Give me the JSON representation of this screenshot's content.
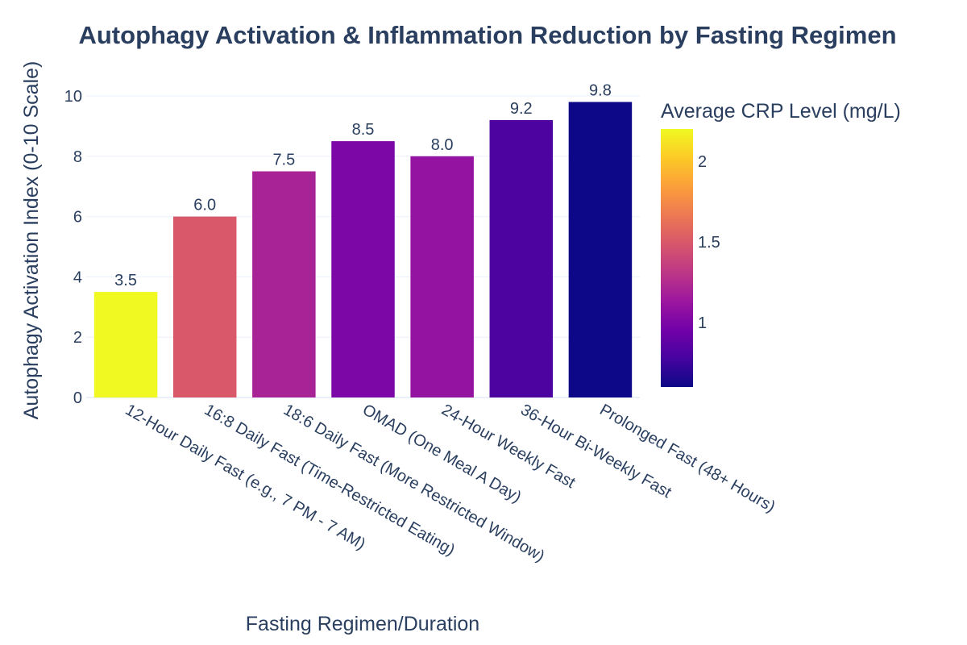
{
  "chart_data": {
    "type": "bar",
    "title": "Autophagy Activation & Inflammation Reduction by Fasting Regimen",
    "xlabel": "Fasting Regimen/Duration",
    "ylabel": "Autophagy Activation Index (0-10 Scale)",
    "ylim": [
      0,
      10
    ],
    "yticks": [
      0,
      2,
      4,
      6,
      8,
      10
    ],
    "categories": [
      "12-Hour Daily Fast (e.g., 7 PM - 7 AM)",
      "16:8 Daily Fast (Time-Restricted Eating)",
      "18:6 Daily Fast (More Restricted Window)",
      "OMAD (One Meal A Day)",
      "24-Hour Weekly Fast",
      "36-Hour Bi-Weekly Fast",
      "Prolonged Fast (48+ Hours)"
    ],
    "values": [
      3.5,
      6.0,
      7.5,
      8.5,
      8.0,
      9.2,
      9.8
    ],
    "value_labels": [
      "3.5",
      "6.0",
      "7.5",
      "8.5",
      "8.0",
      "9.2",
      "9.8"
    ],
    "color_values": [
      2.2,
      1.5,
      1.2,
      1.0,
      1.1,
      0.8,
      0.6
    ],
    "colorbar": {
      "title": "Average CRP Level (mg/L)",
      "range": [
        0.6,
        2.2
      ],
      "ticks": [
        1,
        1.5,
        2
      ],
      "tick_labels": [
        "1",
        "1.5",
        "2"
      ],
      "colorscale": [
        "#0d0887",
        "#46039f",
        "#7201a8",
        "#9c179e",
        "#bd3786",
        "#d8576b",
        "#ed7953",
        "#fb9f3a",
        "#fdca26",
        "#f0f921"
      ]
    },
    "grid": true
  }
}
